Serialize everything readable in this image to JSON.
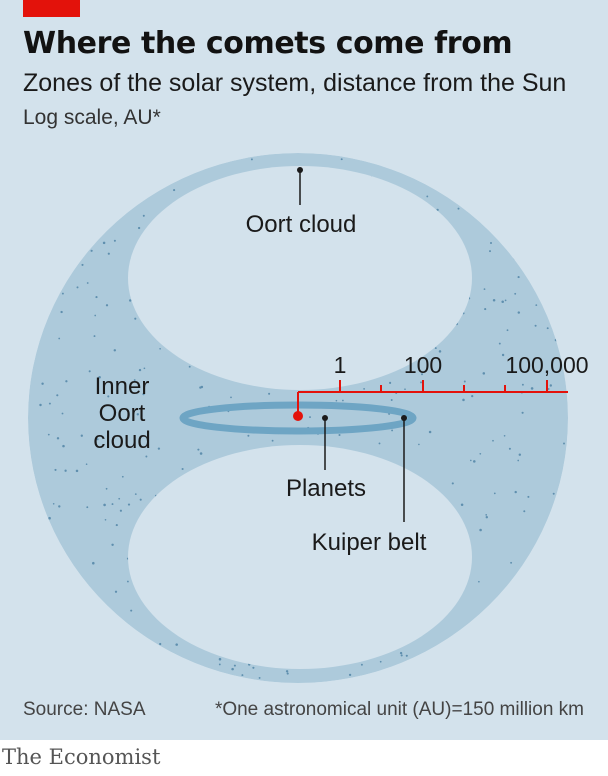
{
  "header": {
    "title": "Where the comets come from",
    "subtitle": "Zones of the solar system, distance from the Sun",
    "unit_note": "Log scale, AU*"
  },
  "diagram": {
    "zones": {
      "oort_cloud": "Oort cloud",
      "inner_oort_cloud": [
        "Inner",
        "Oort",
        "cloud"
      ],
      "planets": "Planets",
      "kuiper_belt": "Kuiper belt"
    },
    "scale": {
      "type": "log",
      "unit": "AU",
      "tick_labels": [
        "1",
        "100",
        "100,000"
      ],
      "minor_ticks": 3
    },
    "colors": {
      "background": "#d3e2ec",
      "cloud": "#adcadb",
      "kuiper_belt": "#6ea5c4",
      "scale": "#e3120b",
      "sun": "#e3120b",
      "title_tag": "#e3120b"
    }
  },
  "footer": {
    "source": "Source: NASA",
    "footnote": "*One astronomical unit (AU)=150 million km",
    "brand": "The Economist"
  }
}
